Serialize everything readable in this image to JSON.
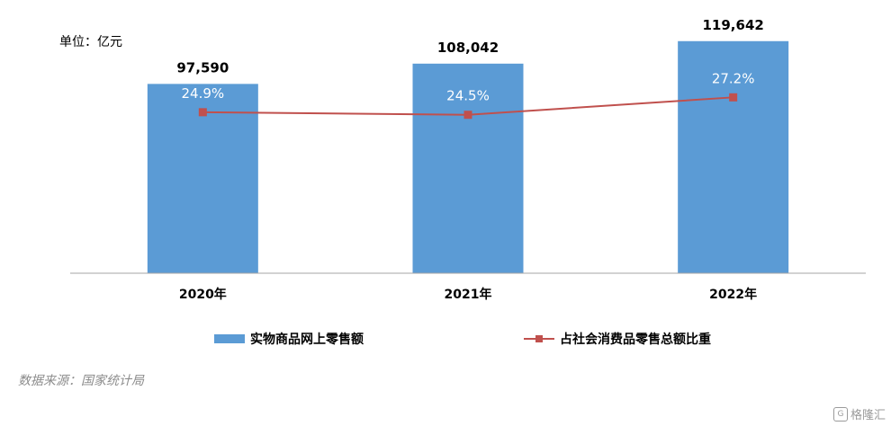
{
  "unit_label": "单位：亿元",
  "source": "数据来源：国家统计局",
  "watermark": "格隆汇",
  "colors": {
    "bar": "#5b9bd5",
    "line": "#c0504d",
    "axis": "#a6a6a6"
  },
  "chart_data": {
    "type": "bar",
    "categories": [
      "2020年",
      "2021年",
      "2022年"
    ],
    "series": [
      {
        "name": "实物商品网上零售额",
        "type": "bar",
        "values": [
          97590,
          108042,
          119642
        ],
        "labels": [
          "97,590",
          "108,042",
          "119,642"
        ]
      },
      {
        "name": "占社会消费品零售总额比重",
        "type": "line",
        "values": [
          24.9,
          24.5,
          27.2
        ],
        "labels": [
          "24.9%",
          "24.5%",
          "27.2%"
        ]
      }
    ],
    "bar_axis": [
      0,
      120000
    ],
    "line_axis": [
      0,
      36
    ],
    "legend_position": "bottom",
    "grid": false
  }
}
